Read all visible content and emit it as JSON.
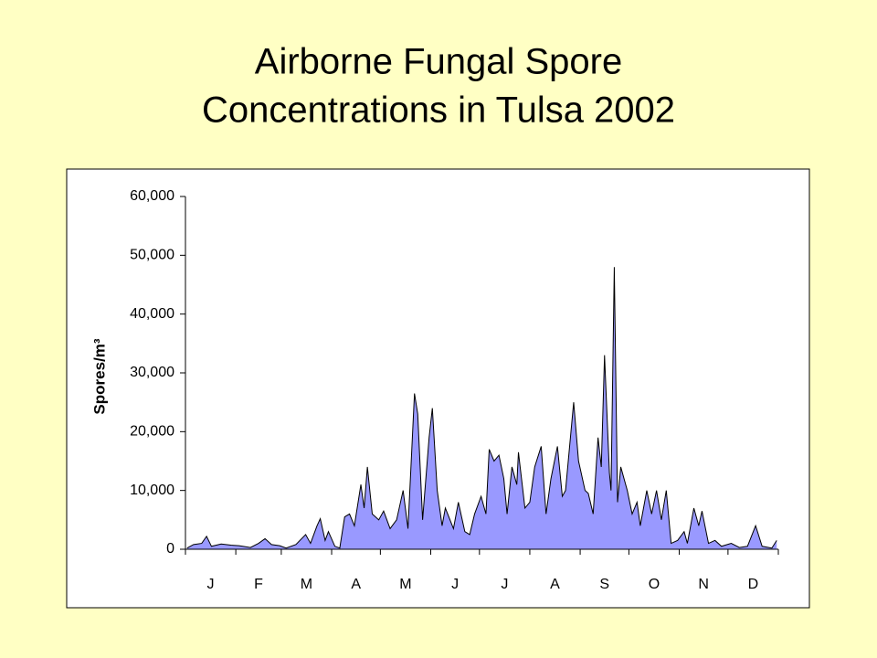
{
  "chart_data": {
    "type": "area",
    "title_lines": [
      "Airborne Fungal Spore",
      "Concentrations in Tulsa 2002"
    ],
    "y_label": "Spores/m³",
    "months": [
      "J",
      "F",
      "M",
      "A",
      "M",
      "J",
      "J",
      "A",
      "S",
      "O",
      "N",
      "D"
    ],
    "xlim": [
      0,
      365
    ],
    "xticks": [
      0,
      31,
      59,
      90,
      120,
      151,
      181,
      212,
      243,
      273,
      304,
      334,
      365
    ],
    "ylim": [
      0,
      60000
    ],
    "yticks": [
      0,
      {
        "value": 10000,
        "label": "10,000"
      },
      {
        "value": 20000,
        "label": "20,000"
      },
      {
        "value": 30000,
        "label": "30,000"
      },
      {
        "value": 40000,
        "label": "40,000"
      },
      {
        "value": 50000,
        "label": "50,000"
      },
      {
        "value": 60000,
        "label": "60,000"
      }
    ],
    "color": "#9999ff",
    "x": [
      1,
      5,
      10,
      13,
      16,
      22,
      28,
      33,
      40,
      45,
      49,
      53,
      58,
      62,
      68,
      74,
      77,
      81,
      83,
      86,
      88,
      92,
      95,
      98,
      101,
      104,
      108,
      110,
      112,
      115,
      119,
      122,
      126,
      130,
      134,
      137,
      141,
      143,
      146,
      150,
      152,
      155,
      158,
      160,
      165,
      168,
      172,
      175,
      178,
      182,
      185,
      187,
      190,
      193,
      196,
      198,
      201,
      204,
      205,
      209,
      212,
      215,
      219,
      222,
      225,
      229,
      232,
      234,
      239,
      242,
      246,
      248,
      251,
      254,
      256,
      258,
      261,
      262,
      264,
      266,
      268,
      272,
      275,
      278,
      280,
      284,
      287,
      290,
      293,
      296,
      299,
      303,
      307,
      309,
      313,
      316,
      318,
      322,
      326,
      330,
      336,
      341,
      346,
      351,
      355,
      361,
      364
    ],
    "values": [
      200,
      800,
      1000,
      2200,
      500,
      900,
      700,
      600,
      300,
      1000,
      1800,
      800,
      600,
      200,
      800,
      2500,
      1000,
      4000,
      5200,
      1500,
      3000,
      500,
      200,
      5500,
      6000,
      4000,
      11000,
      7000,
      14000,
      6000,
      5000,
      6500,
      3500,
      5000,
      10000,
      3500,
      26500,
      23000,
      5000,
      19000,
      24000,
      10000,
      4000,
      7000,
      3500,
      8000,
      3000,
      2500,
      6000,
      9000,
      6000,
      17000,
      15000,
      16000,
      12000,
      6000,
      14000,
      11000,
      16500,
      7000,
      8000,
      14000,
      17500,
      6000,
      12000,
      17500,
      9000,
      10000,
      25000,
      15000,
      10000,
      9500,
      6000,
      19000,
      14000,
      33000,
      13000,
      10000,
      48000,
      8000,
      14000,
      10000,
      6000,
      8000,
      4000,
      10000,
      6000,
      10000,
      5000,
      10000,
      1000,
      1500,
      3000,
      1000,
      7000,
      4000,
      6500,
      1000,
      1500,
      500,
      1000,
      300,
      500,
      4000,
      500,
      200,
      1500
    ]
  }
}
